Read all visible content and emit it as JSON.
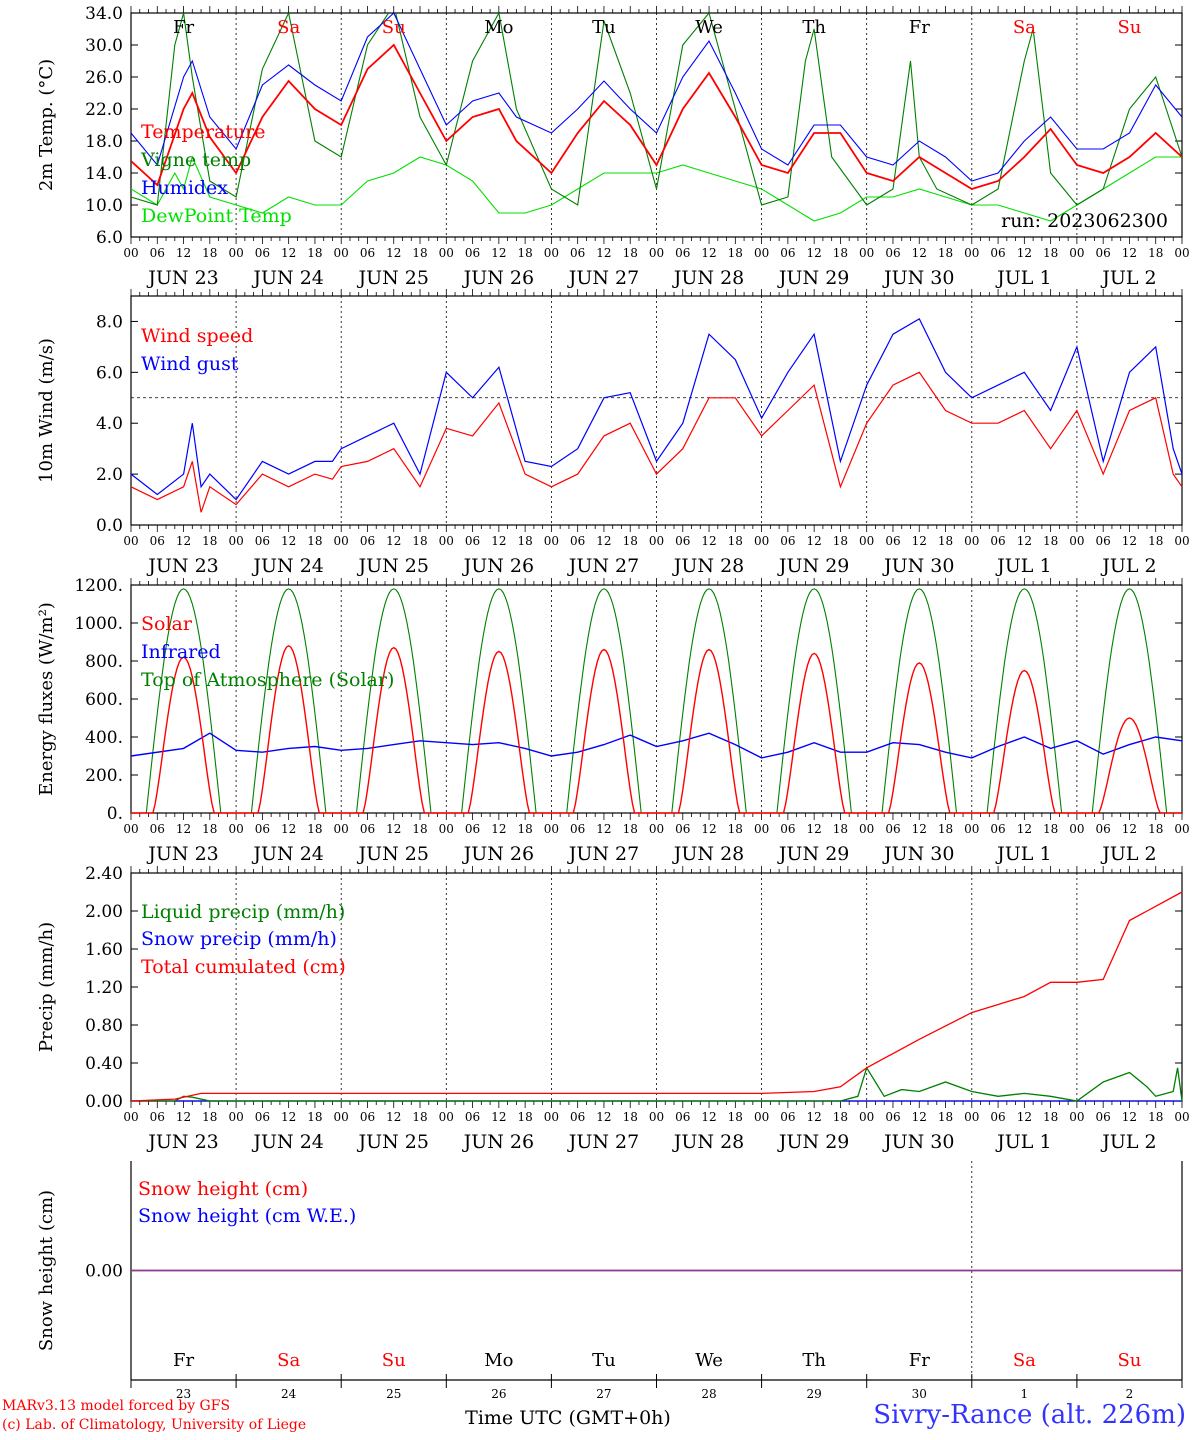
{
  "colors": {
    "temperature": "#ff0000",
    "vigne": "#008000",
    "humidex": "#0000ff",
    "dewpoint": "#00e000",
    "weekend": "#ff0000",
    "weekday": "#000000",
    "snow_line": "#7b3fa0"
  },
  "chart_data": [
    {
      "type": "line",
      "ylabel": "2m Temp. (°C)",
      "ylim": [
        6.0,
        34.0
      ],
      "yticks": [
        "6.0",
        "10.0",
        "14.0",
        "18.0",
        "22.0",
        "26.0",
        "30.0",
        "34.0"
      ],
      "run_label": "run: 2023062300",
      "x_hours": [
        "00",
        "06",
        "12",
        "18"
      ],
      "x_days": [
        "JUN 23",
        "JUN 24",
        "JUN 25",
        "JUN 26",
        "JUN 27",
        "JUN 28",
        "JUN 29",
        "JUN 30",
        "JUL  1",
        "JUL  2"
      ],
      "weekdays": [
        "Fr",
        "Sa",
        "Su",
        "Mo",
        "Tu",
        "We",
        "Th",
        "Fr",
        "Sa",
        "Su"
      ],
      "series": [
        {
          "name": "Temperature",
          "color": "#ff0000",
          "x": [
            0,
            6,
            12,
            14,
            18,
            24,
            30,
            36,
            42,
            48,
            54,
            60,
            66,
            72,
            78,
            84,
            88,
            96,
            102,
            108,
            114,
            120,
            126,
            132,
            138,
            144,
            150,
            156,
            162,
            168,
            174,
            180,
            186,
            192,
            198,
            204,
            210,
            216,
            222,
            228,
            234,
            240
          ],
          "values": [
            15.5,
            12.5,
            22,
            24,
            18.5,
            14,
            21,
            25.5,
            22,
            20,
            27,
            30,
            24,
            18,
            21,
            22,
            18,
            14,
            19,
            23,
            20,
            15,
            22,
            26.5,
            21,
            15,
            14,
            19,
            19,
            14,
            13,
            16,
            14,
            12,
            13,
            16,
            19.5,
            15,
            14,
            16,
            19,
            16
          ]
        },
        {
          "name": "Vigne temp",
          "color": "#008000",
          "x": [
            0,
            6,
            10,
            12,
            14,
            18,
            24,
            30,
            36,
            42,
            48,
            54,
            60,
            66,
            72,
            78,
            84,
            88,
            96,
            102,
            108,
            114,
            120,
            126,
            132,
            138,
            144,
            150,
            154,
            156,
            160,
            168,
            174,
            178,
            180,
            184,
            192,
            198,
            204,
            206,
            210,
            216,
            222,
            228,
            234,
            240
          ],
          "values": [
            11,
            10,
            30,
            34,
            26,
            13,
            11,
            27,
            34,
            18,
            16,
            30,
            35,
            21,
            15,
            28,
            34,
            22,
            12,
            10,
            33,
            24,
            12,
            30,
            34,
            22,
            10,
            11,
            28,
            32,
            16,
            10,
            12,
            28,
            16,
            12,
            10,
            12,
            28,
            32,
            14,
            10,
            12,
            22,
            26,
            16
          ]
        },
        {
          "name": "Humidex",
          "color": "#0000ff",
          "x": [
            0,
            6,
            12,
            14,
            18,
            24,
            30,
            36,
            42,
            48,
            54,
            60,
            66,
            72,
            78,
            84,
            88,
            96,
            102,
            108,
            114,
            120,
            126,
            132,
            138,
            144,
            150,
            156,
            162,
            168,
            174,
            180,
            186,
            192,
            198,
            204,
            210,
            216,
            222,
            228,
            234,
            240
          ],
          "values": [
            19,
            15,
            26,
            28,
            21,
            17,
            25,
            27.5,
            25,
            23,
            31,
            34,
            27,
            20,
            23,
            24,
            21,
            19,
            22,
            25.5,
            22,
            19,
            26,
            30.5,
            24,
            17,
            15,
            20,
            20,
            16,
            15,
            18,
            16,
            13,
            14,
            18,
            21,
            17,
            17,
            19,
            25,
            21
          ]
        },
        {
          "name": "DewPoint Temp",
          "color": "#00e000",
          "x": [
            0,
            6,
            10,
            12,
            14,
            18,
            24,
            30,
            36,
            42,
            48,
            54,
            60,
            66,
            72,
            78,
            84,
            90,
            96,
            102,
            108,
            114,
            120,
            126,
            132,
            138,
            144,
            150,
            156,
            162,
            168,
            174,
            180,
            186,
            192,
            198,
            204,
            210,
            216,
            222,
            228,
            234,
            240
          ],
          "values": [
            12,
            10,
            14,
            12,
            16,
            11,
            10,
            9,
            11,
            10,
            10,
            13,
            14,
            16,
            15,
            13,
            9,
            9,
            10,
            12,
            14,
            14,
            14,
            15,
            14,
            13,
            12,
            10,
            8,
            9,
            11,
            11,
            12,
            11,
            10,
            10,
            9,
            8,
            10,
            12,
            14,
            16,
            16
          ]
        }
      ]
    },
    {
      "type": "line",
      "ylabel": "10m Wind (m/s)",
      "ylim": [
        0.0,
        9.0
      ],
      "yticks": [
        "0.0",
        "2.0",
        "4.0",
        "6.0",
        "8.0"
      ],
      "reference_line": 5.0,
      "x_hours": [
        "00",
        "06",
        "12",
        "18"
      ],
      "x_days": [
        "JUN 23",
        "JUN 24",
        "JUN 25",
        "JUN 26",
        "JUN 27",
        "JUN 28",
        "JUN 29",
        "JUN 30",
        "JUL  1",
        "JUL  2"
      ],
      "series": [
        {
          "name": "Wind speed",
          "color": "#ff0000",
          "x": [
            0,
            6,
            12,
            14,
            16,
            18,
            24,
            30,
            36,
            42,
            46,
            48,
            54,
            60,
            66,
            72,
            78,
            84,
            90,
            96,
            102,
            108,
            114,
            120,
            126,
            132,
            138,
            144,
            150,
            156,
            162,
            168,
            174,
            180,
            186,
            192,
            198,
            204,
            210,
            216,
            222,
            228,
            234,
            238,
            240
          ],
          "values": [
            1.5,
            1,
            1.5,
            2.5,
            0.5,
            1.5,
            0.8,
            2,
            1.5,
            2,
            1.8,
            2.3,
            2.5,
            3,
            1.5,
            3.8,
            3.5,
            4.8,
            2,
            1.5,
            2,
            3.5,
            4,
            2,
            3,
            5,
            5,
            3.5,
            4.5,
            5.5,
            1.5,
            4,
            5.5,
            6,
            4.5,
            4,
            4,
            4.5,
            3,
            4.5,
            2,
            4.5,
            5,
            2,
            1.5
          ]
        },
        {
          "name": "Wind gust",
          "color": "#0000ff",
          "x": [
            0,
            6,
            12,
            14,
            16,
            18,
            24,
            30,
            36,
            42,
            46,
            48,
            54,
            60,
            66,
            72,
            78,
            84,
            90,
            96,
            102,
            108,
            114,
            120,
            126,
            132,
            138,
            144,
            150,
            156,
            162,
            168,
            174,
            180,
            186,
            192,
            198,
            204,
            210,
            216,
            222,
            228,
            234,
            238,
            240
          ],
          "values": [
            2,
            1.2,
            2,
            4,
            1.5,
            2,
            1,
            2.5,
            2,
            2.5,
            2.5,
            3,
            3.5,
            4,
            2,
            6,
            5,
            6.2,
            2.5,
            2.3,
            3,
            5,
            5.2,
            2.5,
            4,
            7.5,
            6.5,
            4.2,
            6,
            7.5,
            2.5,
            5.5,
            7.5,
            8.1,
            6,
            5,
            5.5,
            6,
            4.5,
            7,
            2.5,
            6,
            7,
            3,
            2
          ]
        }
      ]
    },
    {
      "type": "line",
      "ylabel": "Energy fluxes (W/m²)",
      "ylim": [
        0,
        1200
      ],
      "yticks": [
        "0.",
        "200.",
        "400.",
        "600.",
        "800.",
        "1000.",
        "1200."
      ],
      "x_hours": [
        "00",
        "06",
        "12",
        "18"
      ],
      "x_days": [
        "JUN 23",
        "JUN 24",
        "JUN 25",
        "JUN 26",
        "JUN 27",
        "JUN 28",
        "JUN 29",
        "JUN 30",
        "JUL  1",
        "JUL  2"
      ],
      "series": [
        {
          "name": "Solar",
          "color": "#ff0000",
          "day_peaks": [
            820,
            880,
            870,
            850,
            860,
            860,
            840,
            790,
            750,
            500
          ]
        },
        {
          "name": "Infrared",
          "color": "#0000ff",
          "x": [
            0,
            12,
            18,
            24,
            30,
            36,
            42,
            48,
            54,
            60,
            66,
            72,
            78,
            84,
            90,
            96,
            102,
            108,
            114,
            120,
            126,
            132,
            138,
            144,
            150,
            156,
            162,
            168,
            174,
            180,
            186,
            192,
            198,
            204,
            210,
            216,
            222,
            228,
            234,
            240
          ],
          "values": [
            300,
            340,
            420,
            330,
            320,
            340,
            350,
            330,
            340,
            360,
            380,
            370,
            360,
            370,
            340,
            300,
            320,
            360,
            410,
            350,
            380,
            420,
            360,
            290,
            320,
            370,
            320,
            320,
            370,
            360,
            320,
            290,
            350,
            400,
            340,
            380,
            310,
            360,
            400,
            380
          ]
        },
        {
          "name": "Top of Atmosphere (Solar)",
          "color": "#008000",
          "peak": 1180
        }
      ]
    },
    {
      "type": "line",
      "ylabel": "Precip (mm/h)",
      "ylim": [
        0.0,
        2.4
      ],
      "yticks": [
        "0.00",
        "0.40",
        "0.80",
        "1.20",
        "1.60",
        "2.00",
        "2.40"
      ],
      "x_hours": [
        "00",
        "06",
        "12",
        "18"
      ],
      "x_days": [
        "JUN 23",
        "JUN 24",
        "JUN 25",
        "JUN 26",
        "JUN 27",
        "JUN 28",
        "JUN 29",
        "JUN 30",
        "JUL  1",
        "JUL  2"
      ],
      "series": [
        {
          "name": "Liquid precip (mm/h)",
          "color": "#008000",
          "x": [
            0,
            10,
            12,
            14,
            18,
            162,
            166,
            168,
            172,
            176,
            180,
            186,
            192,
            198,
            204,
            210,
            216,
            222,
            228,
            232,
            234,
            238,
            239,
            240
          ],
          "values": [
            0,
            0,
            0.05,
            0.04,
            0,
            0,
            0.05,
            0.35,
            0.05,
            0.12,
            0.1,
            0.2,
            0.1,
            0.05,
            0.08,
            0.05,
            0,
            0.2,
            0.3,
            0.15,
            0.05,
            0.1,
            0.35,
            0
          ]
        },
        {
          "name": "Snow precip (mm/h)",
          "color": "#0000ff",
          "x": [
            0,
            240
          ],
          "values": [
            0,
            0
          ]
        },
        {
          "name": "Total cumulated (cm)",
          "color": "#ff0000",
          "x": [
            0,
            10,
            16,
            144,
            156,
            162,
            168,
            180,
            192,
            204,
            210,
            216,
            222,
            228,
            234,
            240
          ],
          "values": [
            0,
            0.02,
            0.08,
            0.08,
            0.1,
            0.15,
            0.35,
            0.65,
            0.93,
            1.1,
            1.25,
            1.25,
            1.28,
            1.9,
            2.05,
            2.2
          ]
        }
      ]
    },
    {
      "type": "line",
      "ylabel": "Snow height (cm)",
      "ylim": [
        -1,
        1
      ],
      "yticks": [
        "0.00"
      ],
      "xlabel": "Time UTC (GMT+0h)",
      "x_day_numbers": [
        "23",
        "24",
        "25",
        "26",
        "27",
        "28",
        "29",
        "30",
        "1",
        "2"
      ],
      "weekdays": [
        "Fr",
        "Sa",
        "Su",
        "Mo",
        "Tu",
        "We",
        "Th",
        "Fr",
        "Sa",
        "Su"
      ],
      "series": [
        {
          "name": "Snow height (cm)",
          "color": "#ff0000",
          "x": [
            0,
            240
          ],
          "values": [
            0,
            0
          ]
        },
        {
          "name": "Snow height (cm W.E.)",
          "color": "#0000ff",
          "x": [
            0,
            240
          ],
          "values": [
            0,
            0
          ]
        }
      ]
    }
  ],
  "footer": {
    "model_line1": "MARv3.13 model forced by GFS",
    "model_line2": "(c) Lab. of Climatology, University of Liege",
    "station": "Sivry-Rance (alt. 226m)"
  }
}
